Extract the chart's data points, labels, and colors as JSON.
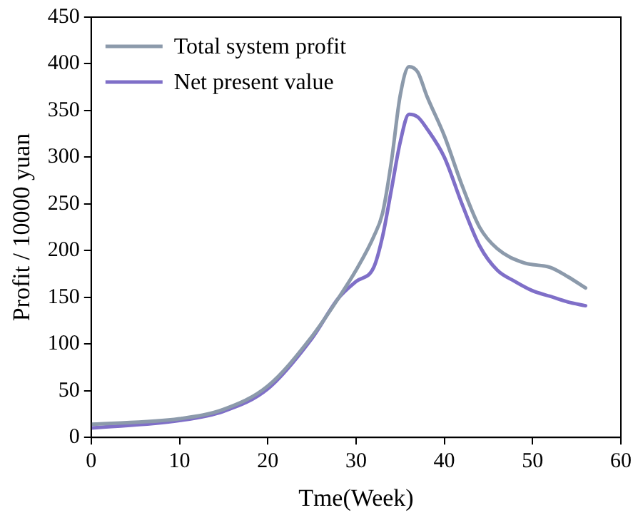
{
  "chart_data": {
    "type": "line",
    "xlabel": "Tme(Week)",
    "ylabel": "Profit / 10000 yuan",
    "xlim": [
      0,
      60
    ],
    "xticks": [
      0,
      10,
      20,
      30,
      40,
      50,
      60
    ],
    "ylim": [
      0,
      450
    ],
    "yticks": [
      0,
      50,
      100,
      150,
      200,
      250,
      300,
      350,
      400,
      450
    ],
    "grid": false,
    "legend": "top left",
    "marker": "none",
    "line_style": "solid",
    "series": [
      {
        "name": "Total system profit",
        "color": "#8c9aab",
        "x": [
          0,
          10,
          15,
          20,
          25,
          28,
          30,
          32,
          33,
          34,
          35,
          36,
          37,
          38,
          40,
          42,
          44,
          46,
          49,
          52,
          54,
          56
        ],
        "values": [
          14,
          20,
          30,
          55,
          108,
          149,
          179,
          215,
          240,
          295,
          366,
          397,
          391,
          366,
          323,
          270,
          225,
          202,
          187,
          182,
          172,
          160
        ]
      },
      {
        "name": "Net present value",
        "color": "#7f6fc8",
        "x": [
          0,
          10,
          15,
          20,
          25,
          28,
          30,
          32,
          33,
          34,
          35,
          36,
          37,
          38,
          40,
          42,
          44,
          46,
          48,
          50,
          52,
          54,
          56
        ],
        "values": [
          10,
          18,
          28,
          52,
          106,
          149,
          167,
          182,
          215,
          265,
          316,
          346,
          343,
          331,
          300,
          250,
          205,
          179,
          167,
          157,
          151,
          145,
          141
        ]
      }
    ]
  }
}
